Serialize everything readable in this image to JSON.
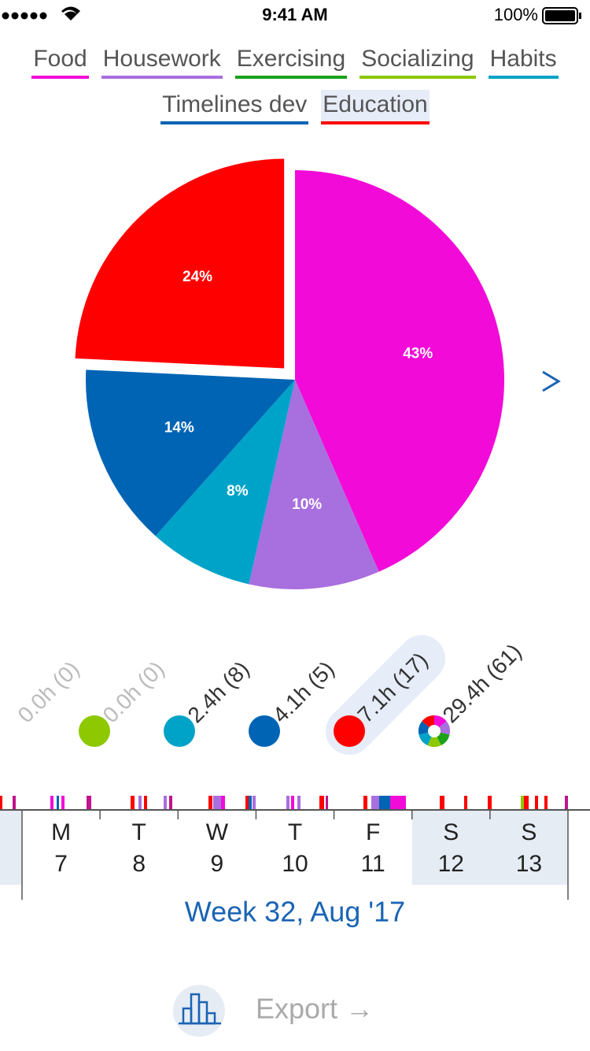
{
  "status_bar": {
    "time": "9:41 AM",
    "battery": "100%"
  },
  "tabs": [
    {
      "label": "Food",
      "color": "#f20ad8"
    },
    {
      "label": "Housework",
      "color": "#a86fdf"
    },
    {
      "label": "Exercising",
      "color": "#1aa21a"
    },
    {
      "label": "Socializing",
      "color": "#8dc800"
    },
    {
      "label": "Habits",
      "color": "#00a3c8"
    },
    {
      "label": "Timelines dev",
      "color": "#0064b4"
    },
    {
      "label": "Education",
      "color": "#ff0000",
      "selected": true
    }
  ],
  "chart_data": {
    "type": "pie",
    "values": [
      43,
      10,
      8,
      14,
      24
    ],
    "value_labels": [
      "43%",
      "10%",
      "8%",
      "14%",
      "24%"
    ],
    "colors": [
      "#f20ad8",
      "#a86fdf",
      "#00a3c8",
      "#0064b4",
      "#ff0000"
    ],
    "exploded": 4
  },
  "legend": [
    {
      "label": "0.0h (0)",
      "dimmed": true
    },
    {
      "label": "0.0h (0)",
      "color": "#8dc800",
      "dimmed": true
    },
    {
      "label": "2.4h (8)",
      "color": "#00a3c8"
    },
    {
      "label": "4.1h (5)",
      "color": "#0064b4"
    },
    {
      "label": "7.1h (17)",
      "color": "#ff0000",
      "selected": true
    },
    {
      "label": "29.4h (61)",
      "all": true
    }
  ],
  "week": {
    "days": [
      {
        "letter": "M",
        "date": 7
      },
      {
        "letter": "T",
        "date": 8
      },
      {
        "letter": "W",
        "date": 9
      },
      {
        "letter": "T",
        "date": 10
      },
      {
        "letter": "F",
        "date": 11
      },
      {
        "letter": "S",
        "date": 12,
        "weekend": true
      },
      {
        "letter": "S",
        "date": 13,
        "weekend": true
      }
    ],
    "title": "Week 32, Aug '17"
  },
  "export": {
    "label": "Export →"
  }
}
